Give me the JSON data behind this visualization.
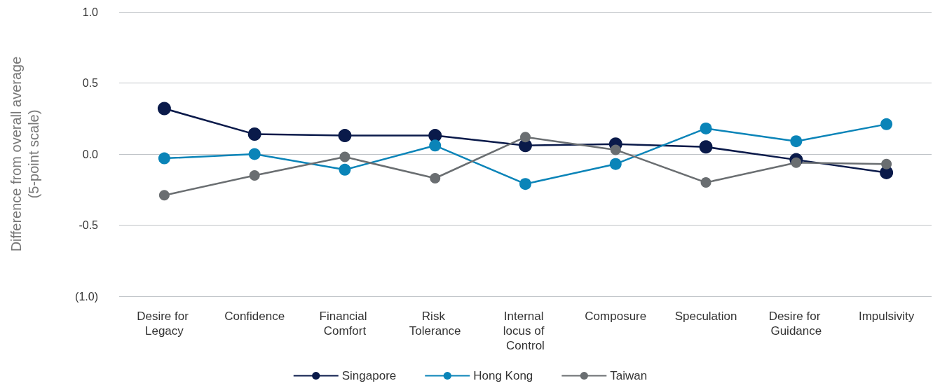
{
  "chart_data": {
    "type": "line",
    "ylabel": "Difference from overall average\n(5-point scale)",
    "categories": [
      "Desire for Legacy",
      "Confidence",
      "Financial Comfort",
      "Risk Tolerance",
      "Internal locus of Control",
      "Composure",
      "Speculation",
      "Desire for Guidance",
      "Impulsivity"
    ],
    "series": [
      {
        "name": "Singapore",
        "color": "#0a1a4a",
        "values": [
          0.32,
          0.14,
          0.13,
          0.13,
          0.06,
          0.07,
          0.05,
          -0.04,
          -0.13
        ]
      },
      {
        "name": "Hong Kong",
        "color": "#0a84b8",
        "values": [
          -0.03,
          0.0,
          -0.11,
          0.06,
          -0.21,
          -0.07,
          0.18,
          0.09,
          0.21
        ]
      },
      {
        "name": "Taiwan",
        "color": "#6a6e71",
        "values": [
          -0.29,
          -0.15,
          -0.02,
          -0.17,
          0.12,
          0.03,
          -0.2,
          -0.06,
          -0.07
        ]
      }
    ],
    "ylim": [
      -1,
      1
    ],
    "yticks": [
      {
        "value": -1,
        "label": "(1.0)"
      },
      {
        "value": -0.5,
        "label": "-0.5"
      },
      {
        "value": 0,
        "label": "0.0"
      },
      {
        "value": 0.5,
        "label": "0.5"
      },
      {
        "value": 1,
        "label": "1.0"
      }
    ],
    "grid": "y",
    "legend": "bottom",
    "marker": "circle",
    "line_style": "solid"
  }
}
